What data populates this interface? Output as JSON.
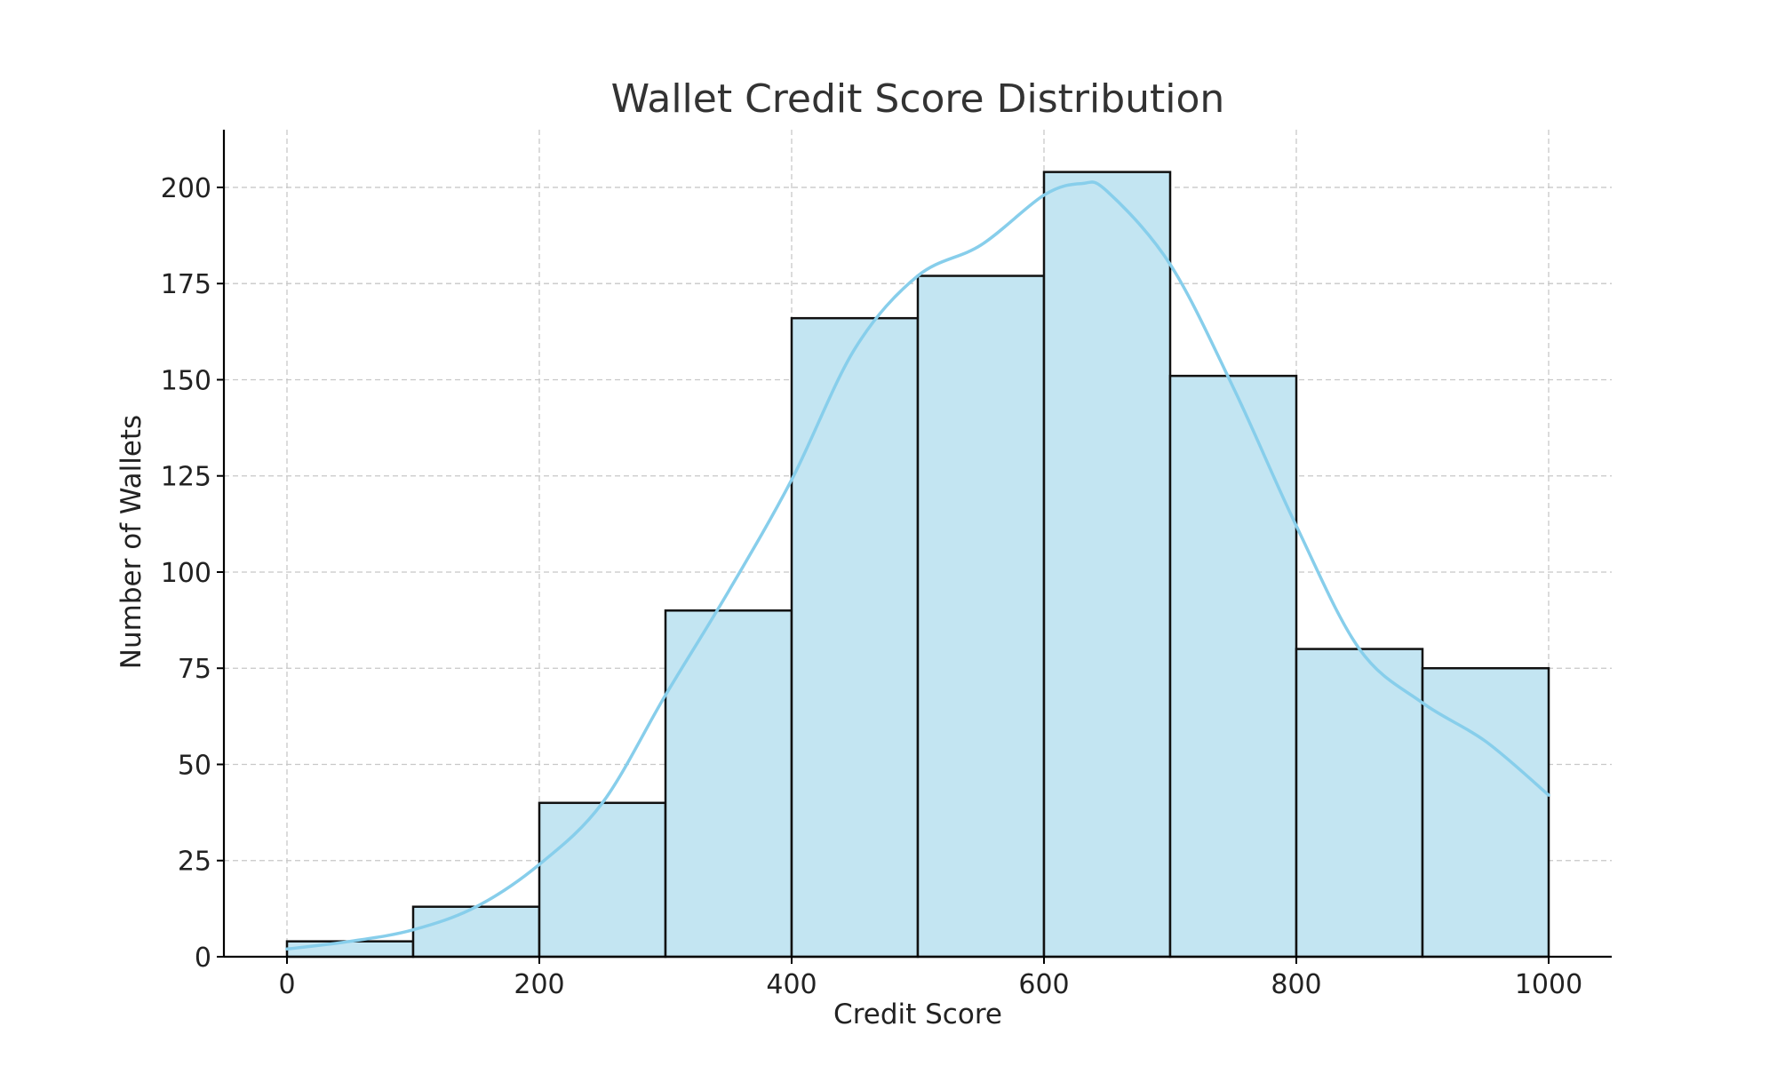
{
  "chart_data": {
    "type": "bar",
    "title": "Wallet Credit Score Distribution",
    "xlabel": "Credit Score",
    "ylabel": "Number of Wallets",
    "bin_edges": [
      0,
      100,
      200,
      300,
      400,
      500,
      600,
      700,
      800,
      900,
      1000
    ],
    "values": [
      4,
      13,
      40,
      90,
      166,
      177,
      204,
      151,
      80,
      75
    ],
    "kde_curve": {
      "x": [
        0,
        50,
        100,
        150,
        200,
        250,
        300,
        350,
        400,
        450,
        500,
        550,
        600,
        630,
        650,
        700,
        750,
        800,
        850,
        900,
        950,
        1000
      ],
      "y": [
        2,
        4,
        7,
        13,
        24,
        40,
        68,
        95,
        124,
        158,
        177,
        185,
        198,
        201,
        199,
        180,
        148,
        112,
        80,
        66,
        56,
        42
      ]
    },
    "xlim": [
      -50,
      1050
    ],
    "ylim": [
      0,
      215
    ],
    "xticks": [
      0,
      200,
      400,
      600,
      800,
      1000
    ],
    "yticks": [
      0,
      25,
      50,
      75,
      100,
      125,
      150,
      175,
      200
    ],
    "grid": true,
    "colors": {
      "bar_fill": "#c3e5f2",
      "bar_edge": "#111111",
      "kde_line": "#87ceeb"
    }
  }
}
